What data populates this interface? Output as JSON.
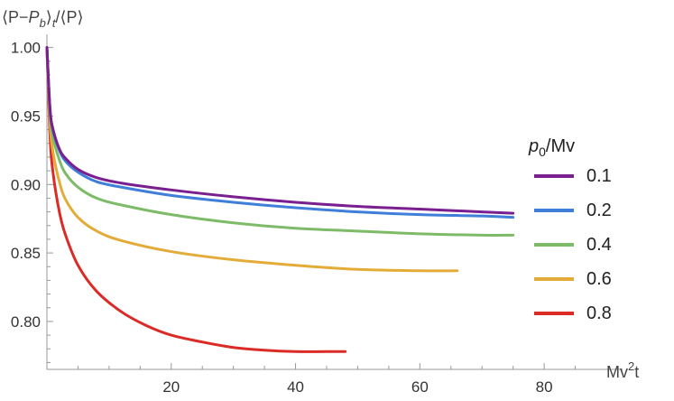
{
  "chart_data": {
    "type": "line",
    "title": "",
    "ylabel": "⟨P−P_b⟩_t/⟨P⟩",
    "ylabel_parts": {
      "a": "⟨P−",
      "b": "P",
      "sub_b": "b",
      "c": "⟩",
      "sub_t": "t",
      "d": "/⟨P⟩"
    },
    "xlabel": "Mv²t",
    "xlabel_parts": {
      "a": "Mv",
      "sup": "2",
      "b": "t"
    },
    "xlim": [
      0,
      90
    ],
    "ylim": [
      0.765,
      1.005
    ],
    "xticks": [
      20,
      40,
      60,
      80
    ],
    "yticks": [
      0.8,
      0.85,
      0.9,
      0.95,
      1.0
    ],
    "ytick_labels": [
      "0.80",
      "0.85",
      "0.90",
      "0.95",
      "1.00"
    ],
    "legend": {
      "title_main": "p",
      "title_sub": "0",
      "title_rest": "/Mv",
      "placement": "right"
    },
    "series": [
      {
        "name": "0.1",
        "color": "#7a1f8f",
        "x": [
          0,
          0.5,
          1,
          2,
          3,
          5,
          8,
          12,
          20,
          30,
          40,
          50,
          60,
          70,
          75
        ],
        "y": [
          1.0,
          0.955,
          0.94,
          0.926,
          0.919,
          0.911,
          0.905,
          0.901,
          0.896,
          0.891,
          0.887,
          0.884,
          0.882,
          0.88,
          0.879
        ]
      },
      {
        "name": "0.2",
        "color": "#3f7fd9",
        "x": [
          0,
          0.5,
          1,
          2,
          3,
          5,
          8,
          12,
          20,
          30,
          40,
          50,
          60,
          70,
          75
        ],
        "y": [
          1.0,
          0.955,
          0.939,
          0.925,
          0.917,
          0.909,
          0.902,
          0.898,
          0.892,
          0.887,
          0.883,
          0.88,
          0.878,
          0.877,
          0.876
        ]
      },
      {
        "name": "0.4",
        "color": "#7dbb68",
        "x": [
          0,
          0.5,
          1,
          2,
          3,
          5,
          8,
          12,
          20,
          30,
          40,
          50,
          60,
          70,
          75
        ],
        "y": [
          1.0,
          0.952,
          0.934,
          0.918,
          0.908,
          0.898,
          0.89,
          0.885,
          0.878,
          0.872,
          0.868,
          0.866,
          0.864,
          0.863,
          0.863
        ]
      },
      {
        "name": "0.6",
        "color": "#e3ac38",
        "x": [
          0,
          0.5,
          1,
          2,
          3,
          5,
          8,
          12,
          20,
          30,
          40,
          50,
          60,
          66
        ],
        "y": [
          1.0,
          0.945,
          0.923,
          0.902,
          0.889,
          0.876,
          0.866,
          0.859,
          0.851,
          0.845,
          0.841,
          0.838,
          0.837,
          0.837
        ]
      },
      {
        "name": "0.8",
        "color": "#db2b27",
        "x": [
          0,
          0.5,
          1,
          2,
          3,
          5,
          8,
          12,
          16,
          20,
          25,
          30,
          35,
          40,
          45,
          48
        ],
        "y": [
          1.0,
          0.935,
          0.908,
          0.88,
          0.863,
          0.841,
          0.822,
          0.807,
          0.797,
          0.79,
          0.785,
          0.781,
          0.779,
          0.778,
          0.778,
          0.778
        ]
      }
    ]
  }
}
